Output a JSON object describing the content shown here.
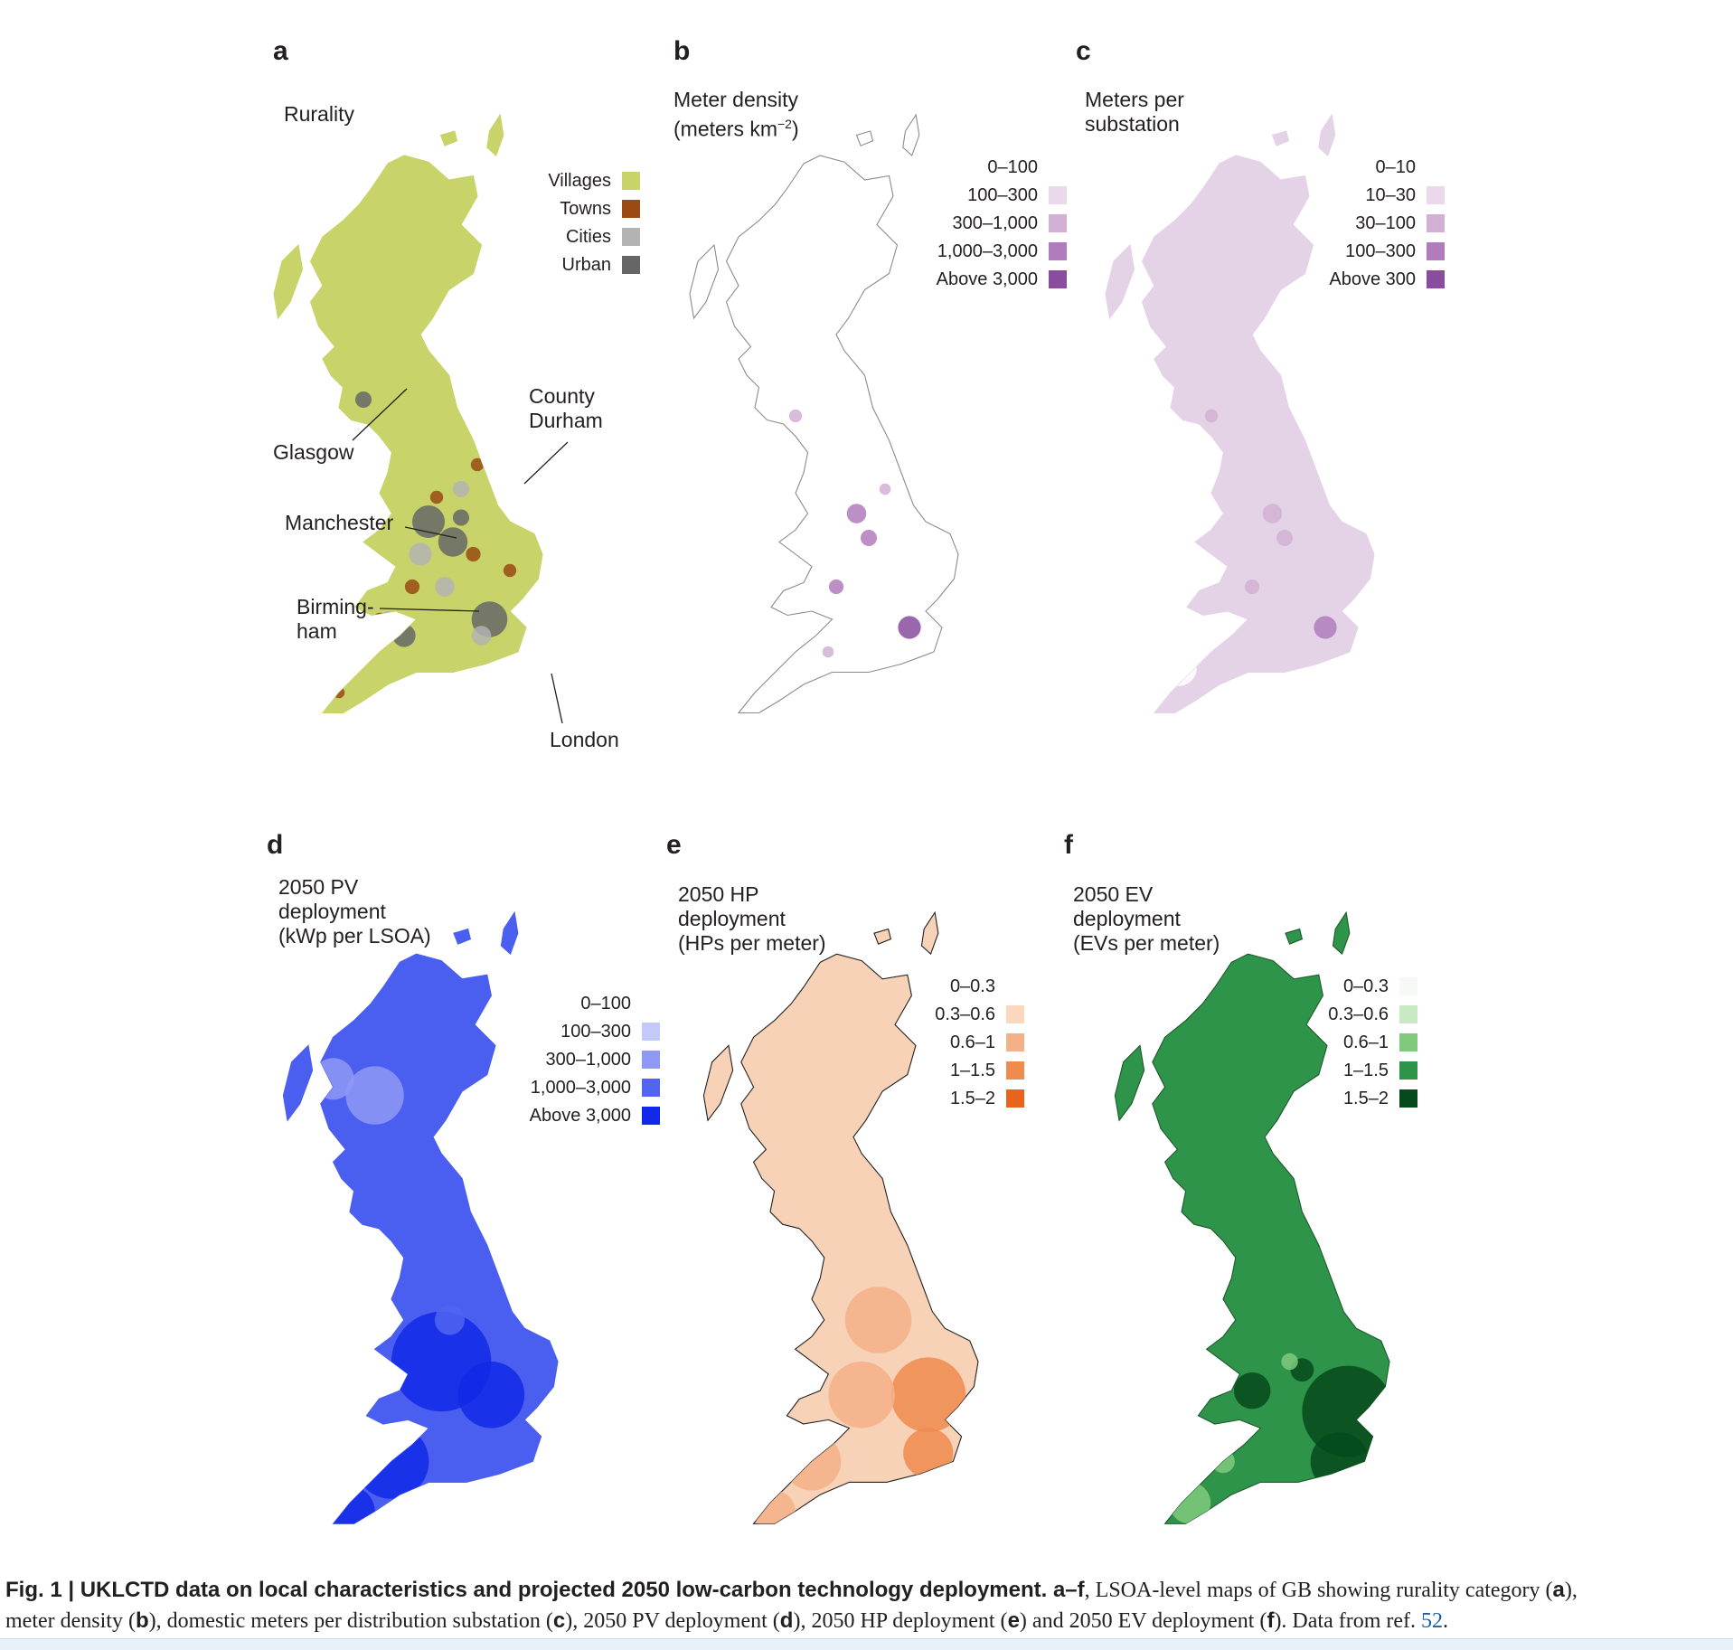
{
  "panels": [
    {
      "id": "a",
      "letter": "a",
      "title": "Rurality",
      "legend": [
        {
          "label": "Villages",
          "color": "#c8d36a"
        },
        {
          "label": "Towns",
          "color": "#9a4a12"
        },
        {
          "label": "Cities",
          "color": "#b3b3b3"
        },
        {
          "label": "Urban",
          "color": "#666666"
        }
      ],
      "fill": "#c8d36a",
      "stroke": "#c8d36a",
      "callouts": [
        {
          "label": "County\nDurham"
        },
        {
          "label": "Glasgow"
        },
        {
          "label": "Manchester"
        },
        {
          "label": "Birming-\nham"
        },
        {
          "label": "London"
        }
      ]
    },
    {
      "id": "b",
      "letter": "b",
      "title": "Meter density\n(meters km",
      "title_sup": "−2",
      "title_end": ")",
      "legend": [
        {
          "label": "0–100",
          "color": "#ffffff"
        },
        {
          "label": "100–300",
          "color": "#ead9ea"
        },
        {
          "label": "300–1,000",
          "color": "#d1b0d4"
        },
        {
          "label": "1,000–3,000",
          "color": "#b07cbc"
        },
        {
          "label": "Above 3,000",
          "color": "#8a4c9e"
        }
      ],
      "fill": "#ffffff",
      "stroke": "#8a8a8a"
    },
    {
      "id": "c",
      "letter": "c",
      "title": "Meters per\nsubstation",
      "legend": [
        {
          "label": "0–10",
          "color": "#ffffff"
        },
        {
          "label": "10–30",
          "color": "#ead9ea"
        },
        {
          "label": "30–100",
          "color": "#d1b0d4"
        },
        {
          "label": "100–300",
          "color": "#b07cbc"
        },
        {
          "label": "Above 300",
          "color": "#8a4c9e"
        }
      ],
      "fill": "#e4d3e6",
      "stroke": "#e4d3e6"
    },
    {
      "id": "d",
      "letter": "d",
      "title": "2050 PV\ndeployment\n(kWp per LSOA)",
      "legend": [
        {
          "label": "0–100",
          "color": "#ffffff"
        },
        {
          "label": "100–300",
          "color": "#c4c9fb"
        },
        {
          "label": "300–1,000",
          "color": "#8f99f5"
        },
        {
          "label": "1,000–3,000",
          "color": "#5164f0"
        },
        {
          "label": "Above 3,000",
          "color": "#1029e8"
        }
      ],
      "fill": "#4a5ef0",
      "stroke": "#4a5ef0"
    },
    {
      "id": "e",
      "letter": "e",
      "title": "2050 HP\ndeployment\n(HPs per meter)",
      "legend": [
        {
          "label": "0–0.3",
          "color": "#ffffff"
        },
        {
          "label": "0.3–0.6",
          "color": "#fbd7c0"
        },
        {
          "label": "0.6–1",
          "color": "#f4b188"
        },
        {
          "label": "1–1.5",
          "color": "#ef8b4d"
        },
        {
          "label": "1.5–2",
          "color": "#e8631b"
        }
      ],
      "fill": "#f8d2b7",
      "stroke": "#222222"
    },
    {
      "id": "f",
      "letter": "f",
      "title": "2050 EV\ndeployment\n(EVs per meter)",
      "legend": [
        {
          "label": "0–0.3",
          "color": "#f5faf4"
        },
        {
          "label": "0.3–0.6",
          "color": "#c9e9c5"
        },
        {
          "label": "0.6–1",
          "color": "#7fca7c"
        },
        {
          "label": "1–1.5",
          "color": "#2e9449"
        },
        {
          "label": "1.5–2",
          "color": "#064a1c"
        }
      ],
      "fill": "#2e9449",
      "stroke": "#1d5a2c"
    }
  ],
  "caption": {
    "lead": "Fig. 1 | UKLCTD data on local characteristics and projected 2050 low-carbon technology deployment. a–f",
    "line1_rest": ", LSOA-level maps of GB showing rurality category (",
    "a": "a",
    "line1_end": "),",
    "line2a": "meter density (",
    "b": "b",
    "line2b": "), domestic meters per distribution substation (",
    "c": "c",
    "line2c": "), 2050 PV deployment (",
    "d": "d",
    "line2d": "), 2050 HP deployment (",
    "e": "e",
    "line2e": ") and 2050 EV deployment (",
    "f": "f",
    "line2f": "). Data from ref. ",
    "ref": "52",
    "line2g": "."
  }
}
